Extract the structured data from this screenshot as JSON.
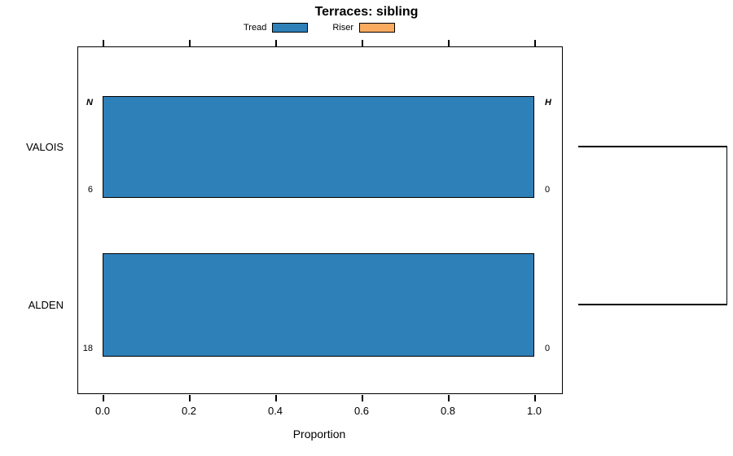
{
  "chart_data": {
    "type": "bar",
    "orientation": "horizontal",
    "title": "Terraces: sibling",
    "xlabel": "Proportion",
    "ylabel": "",
    "categories": [
      "VALOIS",
      "ALDEN"
    ],
    "series": [
      {
        "name": "Tread",
        "color": "#2e80b9",
        "values": [
          1.0,
          1.0
        ]
      },
      {
        "name": "Riser",
        "color": "#fbab60",
        "values": [
          0.0,
          0.0
        ]
      }
    ],
    "xlim": [
      0.0,
      1.0
    ],
    "xticks": [
      0.0,
      0.2,
      0.4,
      0.6,
      0.8,
      1.0
    ],
    "xtick_labels": [
      "0.0",
      "0.2",
      "0.4",
      "0.6",
      "0.8",
      "1.0"
    ],
    "grid": false,
    "legend_position": "top",
    "row_annotations": [
      {
        "category": "VALOIS",
        "left_top": "N",
        "left_bottom": "6",
        "right_top": "H",
        "right_bottom": "0"
      },
      {
        "category": "ALDEN",
        "left_top": "",
        "left_bottom": "18",
        "right_top": "",
        "right_bottom": "0"
      }
    ],
    "sibling_bracket": {
      "connects": [
        "VALOIS",
        "ALDEN"
      ]
    }
  }
}
